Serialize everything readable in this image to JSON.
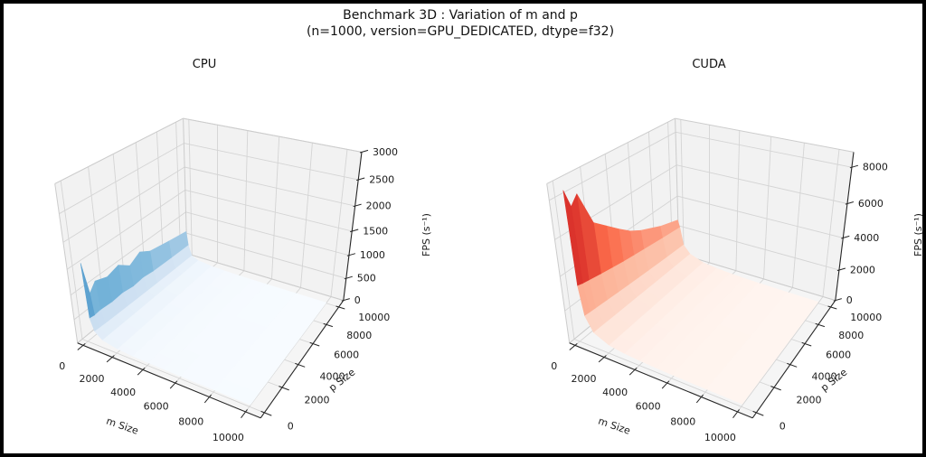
{
  "figure": {
    "title_line1": "Benchmark 3D : Variation of m and p",
    "title_line2": "(n=1000, version=GPU_DEDICATED, dtype=f32)",
    "background": "#ffffff",
    "border_color": "#000000",
    "text_color": "#111111",
    "pane_color": "#f2f2f2",
    "grid_color": "#d4d4d4",
    "axis_color": "#262626"
  },
  "chart_data": [
    {
      "type": "surface3d",
      "title": "CPU",
      "xlabel": "m Size",
      "ylabel": "p Size",
      "zlabel": "FPS (s⁻¹)",
      "colormap": "Blues",
      "legend": "none",
      "grid": true,
      "x_ticks": [
        0,
        2000,
        4000,
        6000,
        8000,
        10000
      ],
      "y_ticks": [
        0,
        2000,
        4000,
        6000,
        8000,
        10000
      ],
      "z_ticks": [
        0,
        500,
        1000,
        1500,
        2000,
        2500,
        3000
      ],
      "xlim": [
        -400,
        10800
      ],
      "ylim": [
        -400,
        10800
      ],
      "zlim": [
        0,
        3000
      ],
      "m_values": [
        100,
        250,
        500,
        1000,
        2000,
        3000,
        4000,
        5000,
        6000,
        8000,
        10000
      ],
      "p_values": [
        100,
        500,
        1000,
        2000,
        3000,
        4000,
        5000,
        6000,
        8000,
        10000
      ],
      "fps": [
        [
          1580,
          500,
          254,
          129,
          65,
          43,
          32,
          26,
          22,
          16,
          13
        ],
        [
          920,
          480,
          246,
          126,
          64,
          43,
          32,
          26,
          21,
          16,
          13
        ],
        [
          1080,
          495,
          238,
          123,
          62,
          42,
          31,
          25,
          21,
          16,
          13
        ],
        [
          990,
          470,
          225,
          118,
          60,
          40,
          30,
          24,
          20,
          15,
          12
        ],
        [
          1060,
          485,
          214,
          113,
          58,
          39,
          29,
          23,
          20,
          15,
          12
        ],
        [
          880,
          445,
          204,
          109,
          57,
          38,
          28,
          23,
          19,
          14,
          12
        ],
        [
          1010,
          465,
          195,
          105,
          55,
          37,
          28,
          22,
          19,
          14,
          11
        ],
        [
          870,
          430,
          187,
          102,
          54,
          36,
          27,
          22,
          18,
          14,
          11
        ],
        [
          780,
          405,
          172,
          95,
          51,
          34,
          26,
          21,
          17,
          13,
          11
        ],
        [
          700,
          385,
          160,
          89,
          48,
          33,
          25,
          20,
          17,
          13,
          10
        ]
      ]
    },
    {
      "type": "surface3d",
      "title": "CUDA",
      "xlabel": "m Size",
      "ylabel": "p Size",
      "zlabel": "FPS (s⁻¹)",
      "colormap": "Reds",
      "legend": "none",
      "grid": true,
      "x_ticks": [
        0,
        2000,
        4000,
        6000,
        8000,
        10000
      ],
      "y_ticks": [
        0,
        2000,
        4000,
        6000,
        8000,
        10000
      ],
      "z_ticks": [
        0,
        2000,
        4000,
        6000,
        8000
      ],
      "xlim": [
        -400,
        10800
      ],
      "ylim": [
        -400,
        10800
      ],
      "zlim": [
        0,
        8800
      ],
      "m_values": [
        100,
        250,
        500,
        1000,
        2000,
        3000,
        4000,
        5000,
        6000,
        8000,
        10000
      ],
      "p_values": [
        100,
        500,
        1000,
        2000,
        3000,
        4000,
        5000,
        6000,
        8000,
        10000
      ],
      "fps": [
        [
          8400,
          3390,
          1700,
          853,
          428,
          286,
          215,
          172,
          143,
          107,
          86
        ],
        [
          7450,
          3310,
          1673,
          847,
          426,
          285,
          214,
          171,
          143,
          107,
          86
        ],
        [
          7900,
          3240,
          1641,
          839,
          424,
          284,
          214,
          171,
          143,
          107,
          86
        ],
        [
          6000,
          3110,
          1581,
          824,
          420,
          282,
          213,
          170,
          142,
          107,
          86
        ],
        [
          5400,
          2990,
          1525,
          809,
          417,
          281,
          211,
          170,
          142,
          107,
          86
        ],
        [
          4800,
          2880,
          1473,
          794,
          413,
          279,
          210,
          169,
          141,
          106,
          85
        ],
        [
          4250,
          2780,
          1424,
          781,
          409,
          277,
          210,
          168,
          141,
          106,
          85
        ],
        [
          3850,
          2690,
          1378,
          767,
          406,
          276,
          209,
          168,
          140,
          106,
          85
        ],
        [
          3260,
          2520,
          1295,
          743,
          398,
          272,
          206,
          166,
          139,
          105,
          85
        ],
        [
          2830,
          2370,
          1222,
          719,
          391,
          269,
          204,
          164,
          138,
          104,
          84
        ]
      ]
    }
  ],
  "colormaps": {
    "Blues": [
      [
        247,
        251,
        255
      ],
      [
        198,
        219,
        239
      ],
      [
        107,
        174,
        214
      ],
      [
        33,
        113,
        181
      ],
      [
        8,
        48,
        107
      ]
    ],
    "Reds": [
      [
        255,
        245,
        240
      ],
      [
        252,
        187,
        161
      ],
      [
        251,
        106,
        74
      ],
      [
        203,
        24,
        29
      ],
      [
        103,
        0,
        13
      ]
    ]
  }
}
